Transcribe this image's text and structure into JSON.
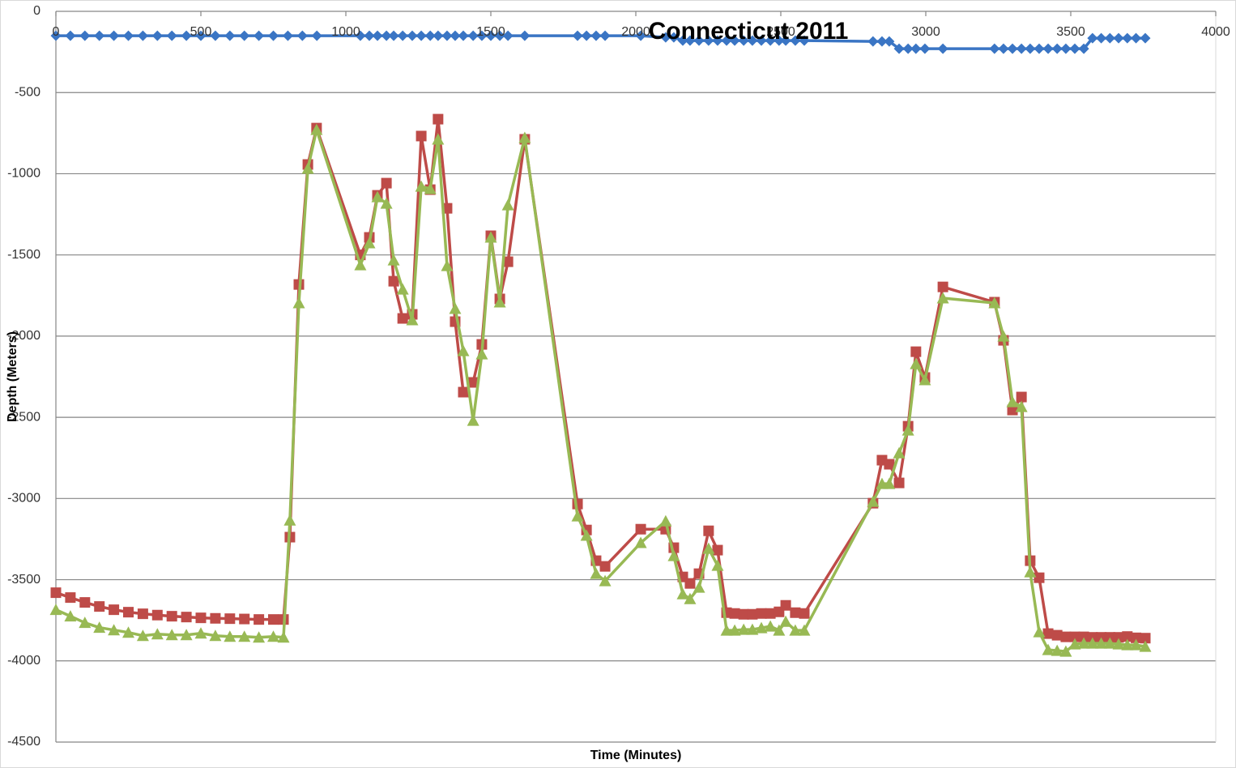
{
  "chart_data": {
    "type": "line",
    "title": "Connecticut 2011",
    "x_label": "Time (Minutes)",
    "y_label": "Depth (Meters)",
    "xlim": [
      0,
      4000
    ],
    "xticks": [
      0,
      500,
      1000,
      1500,
      2000,
      2500,
      3000,
      3500,
      4000
    ],
    "ylim": [
      -4500,
      0
    ],
    "yticks": [
      0,
      -500,
      -1000,
      -1500,
      -2000,
      -2500,
      -3000,
      -3500,
      -4000,
      -4500
    ],
    "grid": true,
    "series": [
      {
        "color": "#3a75c4",
        "marker": "diamond",
        "x": [
          0,
          50,
          100,
          150,
          200,
          250,
          300,
          350,
          400,
          450,
          500,
          550,
          600,
          650,
          700,
          750,
          800,
          850,
          900,
          1050,
          1081,
          1109,
          1140,
          1165,
          1196,
          1229,
          1260,
          1291,
          1318,
          1349,
          1377,
          1405,
          1439,
          1469,
          1500,
          1531,
          1559,
          1617,
          1799,
          1830,
          1863,
          1894,
          2017,
          2103,
          2131,
          2162,
          2187,
          2218,
          2251,
          2282,
          2313,
          2341,
          2372,
          2402,
          2433,
          2464,
          2494,
          2517,
          2550,
          2581,
          2818,
          2849,
          2874,
          2908,
          2939,
          2966,
          2997,
          3059,
          3237,
          3268,
          3299,
          3330,
          3360,
          3391,
          3422,
          3453,
          3483,
          3514,
          3545,
          3575,
          3605,
          3635,
          3665,
          3695,
          3725,
          3757
        ],
        "values": [
          -150,
          -150,
          -150,
          -150,
          -150,
          -150,
          -150,
          -150,
          -150,
          -150,
          -150,
          -150,
          -150,
          -150,
          -150,
          -150,
          -150,
          -150,
          -150,
          -150,
          -150,
          -150,
          -150,
          -150,
          -150,
          -150,
          -150,
          -150,
          -150,
          -150,
          -150,
          -150,
          -150,
          -150,
          -150,
          -150,
          -150,
          -150,
          -150,
          -150,
          -150,
          -150,
          -150,
          -160,
          -160,
          -180,
          -180,
          -180,
          -180,
          -180,
          -180,
          -180,
          -180,
          -180,
          -180,
          -180,
          -180,
          -180,
          -180,
          -180,
          -185,
          -185,
          -185,
          -230,
          -230,
          -230,
          -230,
          -230,
          -230,
          -230,
          -230,
          -230,
          -230,
          -230,
          -230,
          -230,
          -230,
          -230,
          -230,
          -165,
          -165,
          -165,
          -165,
          -165,
          -165,
          -165
        ]
      },
      {
        "color": "#be4b48",
        "marker": "square",
        "x": [
          0,
          50,
          100,
          150,
          200,
          250,
          300,
          350,
          400,
          450,
          500,
          550,
          600,
          650,
          700,
          750,
          785,
          807,
          838,
          869,
          899,
          1050,
          1081,
          1109,
          1140,
          1165,
          1196,
          1229,
          1260,
          1291,
          1318,
          1349,
          1377,
          1405,
          1439,
          1469,
          1500,
          1531,
          1559,
          1617,
          1799,
          1830,
          1863,
          1894,
          2017,
          2103,
          2131,
          2162,
          2187,
          2218,
          2251,
          2282,
          2313,
          2341,
          2372,
          2402,
          2433,
          2464,
          2494,
          2517,
          2550,
          2581,
          2818,
          2849,
          2874,
          2908,
          2939,
          2966,
          2997,
          3059,
          3237,
          3268,
          3299,
          3330,
          3360,
          3391,
          3422,
          3453,
          3483,
          3514,
          3545,
          3575,
          3605,
          3635,
          3665,
          3695,
          3725,
          3757
        ],
        "values": [
          -3580,
          -3610,
          -3640,
          -3665,
          -3685,
          -3700,
          -3710,
          -3718,
          -3725,
          -3730,
          -3735,
          -3738,
          -3740,
          -3742,
          -3745,
          -3745,
          -3745,
          -3238,
          -1682,
          -943,
          -719,
          -1500,
          -1392,
          -1133,
          -1058,
          -1662,
          -1891,
          -1866,
          -768,
          -1098,
          -664,
          -1213,
          -1911,
          -2345,
          -2285,
          -2051,
          -1382,
          -1771,
          -1542,
          -788,
          -3034,
          -3194,
          -3383,
          -3418,
          -3189,
          -3189,
          -3303,
          -3483,
          -3523,
          -3463,
          -3199,
          -3318,
          -3703,
          -3708,
          -3713,
          -3713,
          -3708,
          -3708,
          -3698,
          -3658,
          -3703,
          -3708,
          -3029,
          -2764,
          -2789,
          -2904,
          -2555,
          -2096,
          -2255,
          -1697,
          -1791,
          -2026,
          -2455,
          -2375,
          -3383,
          -3488,
          -3832,
          -3842,
          -3852,
          -3852,
          -3852,
          -3855,
          -3855,
          -3855,
          -3855,
          -3850,
          -3858,
          -3860
        ]
      },
      {
        "color": "#98b954",
        "marker": "triangle",
        "x": [
          0,
          50,
          100,
          150,
          200,
          250,
          300,
          350,
          400,
          450,
          500,
          550,
          600,
          650,
          700,
          750,
          785,
          807,
          838,
          869,
          899,
          1050,
          1081,
          1109,
          1140,
          1165,
          1196,
          1229,
          1260,
          1291,
          1318,
          1349,
          1377,
          1405,
          1439,
          1469,
          1500,
          1531,
          1559,
          1617,
          1799,
          1830,
          1863,
          1894,
          2017,
          2103,
          2131,
          2162,
          2187,
          2218,
          2251,
          2282,
          2313,
          2341,
          2372,
          2402,
          2433,
          2464,
          2494,
          2517,
          2550,
          2581,
          2818,
          2849,
          2874,
          2908,
          2939,
          2966,
          2997,
          3059,
          3237,
          3268,
          3299,
          3330,
          3360,
          3391,
          3422,
          3453,
          3483,
          3514,
          3545,
          3575,
          3605,
          3635,
          3665,
          3695,
          3725,
          3757
        ],
        "values": [
          -3685,
          -3725,
          -3765,
          -3795,
          -3810,
          -3825,
          -3845,
          -3835,
          -3840,
          -3840,
          -3830,
          -3845,
          -3850,
          -3850,
          -3855,
          -3850,
          -3855,
          -3134,
          -1796,
          -968,
          -729,
          -1562,
          -1427,
          -1143,
          -1183,
          -1532,
          -1712,
          -1901,
          -1078,
          -1093,
          -788,
          -1567,
          -1831,
          -2091,
          -2520,
          -2111,
          -1392,
          -1791,
          -1193,
          -778,
          -3109,
          -3228,
          -3463,
          -3508,
          -3273,
          -3139,
          -3353,
          -3588,
          -3618,
          -3548,
          -3308,
          -3413,
          -3812,
          -3812,
          -3807,
          -3807,
          -3797,
          -3787,
          -3812,
          -3758,
          -3812,
          -3812,
          -3019,
          -2909,
          -2909,
          -2720,
          -2580,
          -2171,
          -2270,
          -1766,
          -1796,
          -2001,
          -2405,
          -2435,
          -3453,
          -3822,
          -3932,
          -3937,
          -3942,
          -3897,
          -3892,
          -3892,
          -3892,
          -3892,
          -3897,
          -3902,
          -3902,
          -3912
        ]
      }
    ]
  }
}
